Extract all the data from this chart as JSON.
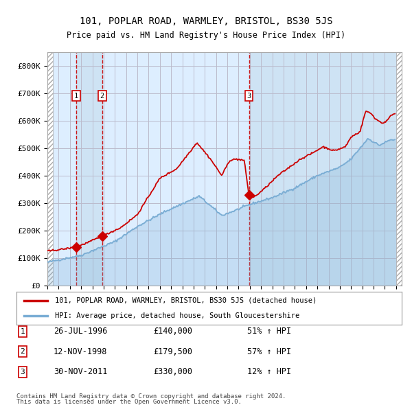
{
  "title": "101, POPLAR ROAD, WARMLEY, BRISTOL, BS30 5JS",
  "subtitle": "Price paid vs. HM Land Registry's House Price Index (HPI)",
  "legend_line1": "101, POPLAR ROAD, WARMLEY, BRISTOL, BS30 5JS (detached house)",
  "legend_line2": "HPI: Average price, detached house, South Gloucestershire",
  "transactions": [
    {
      "num": 1,
      "date": "26-JUL-1996",
      "price": 140000,
      "pct": "51%",
      "year": 1996.56
    },
    {
      "num": 2,
      "date": "12-NOV-1998",
      "price": 179500,
      "pct": "57%",
      "year": 1998.87
    },
    {
      "num": 3,
      "date": "30-NOV-2011",
      "price": 330000,
      "pct": "12%",
      "year": 2011.92
    }
  ],
  "footer1": "Contains HM Land Registry data © Crown copyright and database right 2024.",
  "footer2": "This data is licensed under the Open Government Licence v3.0.",
  "red_color": "#cc0000",
  "blue_color": "#7aadd4",
  "bg_plot_color": "#ddeeff",
  "grid_color": "#bbbbcc",
  "ylim": [
    0,
    850000
  ],
  "xlim_start": 1994.0,
  "xlim_end": 2025.5
}
